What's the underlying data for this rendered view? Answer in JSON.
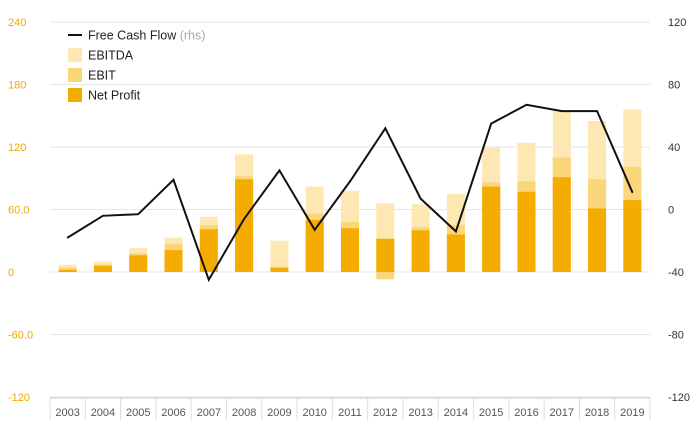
{
  "chart_data": {
    "type": "bar",
    "categories": [
      "2003",
      "2004",
      "2005",
      "2006",
      "2007",
      "2008",
      "2009",
      "2010",
      "2011",
      "2012",
      "2013",
      "2014",
      "2015",
      "2016",
      "2017",
      "2018",
      "2019"
    ],
    "series": [
      {
        "name": "EBITDA",
        "kind": "bar",
        "axis": "left",
        "color": "#fde8b4",
        "values": [
          7,
          10,
          23,
          33,
          53,
          113,
          30,
          82,
          78,
          66,
          65,
          75,
          120,
          124,
          155,
          145,
          156
        ]
      },
      {
        "name": "EBIT",
        "kind": "bar",
        "axis": "left",
        "color": "#fbd57a",
        "values": [
          4,
          7,
          18,
          27,
          45,
          92,
          5,
          56,
          48,
          -7,
          43,
          45,
          86,
          87,
          110,
          89,
          101
        ]
      },
      {
        "name": "Net Profit",
        "kind": "bar",
        "axis": "left",
        "color": "#f5ac00",
        "values": [
          2,
          6,
          16,
          21,
          41,
          89,
          4,
          50,
          42,
          32,
          40,
          36,
          82,
          77,
          91,
          61,
          69
        ]
      },
      {
        "name": "Free Cash Flow",
        "kind": "line",
        "axis": "right",
        "color": "#111111",
        "values": [
          -18,
          -4,
          -3,
          19,
          -45,
          -6,
          25,
          -13,
          18,
          52,
          7,
          -14,
          55,
          67,
          63,
          63,
          11
        ]
      }
    ],
    "y_left": {
      "ylim": [
        -120,
        240
      ],
      "ticks": [
        "240",
        "180",
        "120",
        "60.0",
        "0",
        "-60.0",
        "-120"
      ],
      "tick_values": [
        240,
        180,
        120,
        60,
        0,
        -60,
        -120
      ]
    },
    "y_right": {
      "ylim": [
        -120,
        120
      ],
      "ticks": [
        "120",
        "80",
        "40",
        "0",
        "-40",
        "-80",
        "-120"
      ],
      "tick_values": [
        120,
        80,
        40,
        0,
        -40,
        -80,
        -120
      ]
    },
    "grid": true,
    "legend": {
      "placement": "top-left",
      "items": [
        {
          "label": "Free Cash Flow",
          "note": "(rhs)",
          "marker": "line",
          "color": "#111111"
        },
        {
          "label": "EBITDA",
          "marker": "box",
          "color": "#fde8b4"
        },
        {
          "label": "EBIT",
          "marker": "box",
          "color": "#fbd57a"
        },
        {
          "label": "Net Profit",
          "marker": "box",
          "color": "#f5ac00"
        }
      ]
    },
    "colors": {
      "left_axis": "#f0a800",
      "right_axis": "#333333",
      "grid": "#e6e6e6"
    }
  }
}
